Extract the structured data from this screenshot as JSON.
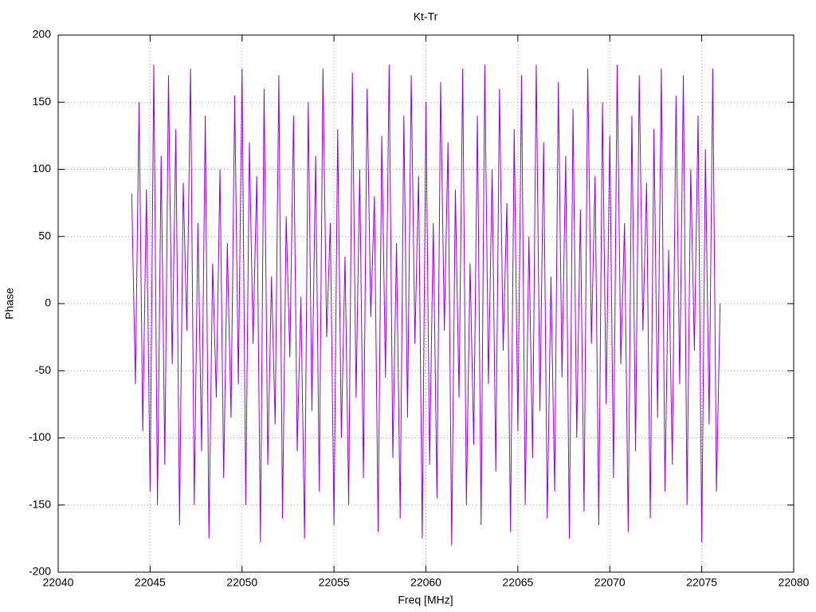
{
  "chart_data": {
    "type": "line",
    "title": "Kt-Tr",
    "xlabel": "Freq [MHz]",
    "ylabel": "Phase",
    "x": [
      22044,
      22044.2,
      22044.4,
      22044.6,
      22044.8,
      22045,
      22045.2,
      22045.4,
      22045.6,
      22045.8,
      22046,
      22046.2,
      22046.4,
      22046.6,
      22046.8,
      22047,
      22047.2,
      22047.4,
      22047.6,
      22047.8,
      22048,
      22048.2,
      22048.4,
      22048.6,
      22048.8,
      22049,
      22049.2,
      22049.4,
      22049.6,
      22049.8,
      22050,
      22050.2,
      22050.4,
      22050.6,
      22050.8,
      22051,
      22051.2,
      22051.4,
      22051.6,
      22051.8,
      22052,
      22052.2,
      22052.4,
      22052.6,
      22052.8,
      22053,
      22053.2,
      22053.4,
      22053.6,
      22053.8,
      22054,
      22054.2,
      22054.4,
      22054.6,
      22054.8,
      22055,
      22055.2,
      22055.4,
      22055.6,
      22055.8,
      22056,
      22056.2,
      22056.4,
      22056.6,
      22056.8,
      22057,
      22057.2,
      22057.4,
      22057.6,
      22057.8,
      22058,
      22058.2,
      22058.4,
      22058.6,
      22058.8,
      22059,
      22059.2,
      22059.4,
      22059.6,
      22059.8,
      22060,
      22060.2,
      22060.4,
      22060.6,
      22060.8,
      22061,
      22061.2,
      22061.4,
      22061.6,
      22061.8,
      22062,
      22062.2,
      22062.4,
      22062.6,
      22062.8,
      22063,
      22063.2,
      22063.4,
      22063.6,
      22063.8,
      22064,
      22064.2,
      22064.4,
      22064.6,
      22064.8,
      22065,
      22065.2,
      22065.4,
      22065.6,
      22065.8,
      22066,
      22066.2,
      22066.4,
      22066.6,
      22066.8,
      22067,
      22067.2,
      22067.4,
      22067.6,
      22067.8,
      22068,
      22068.2,
      22068.4,
      22068.6,
      22068.8,
      22069,
      22069.2,
      22069.4,
      22069.6,
      22069.8,
      22070,
      22070.2,
      22070.4,
      22070.6,
      22070.8,
      22071,
      22071.2,
      22071.4,
      22071.6,
      22071.8,
      22072,
      22072.2,
      22072.4,
      22072.6,
      22072.8,
      22073,
      22073.2,
      22073.4,
      22073.6,
      22073.8,
      22074,
      22074.2,
      22074.4,
      22074.6,
      22074.8,
      22075,
      22075.2,
      22075.4,
      22075.6,
      22075.8,
      22076
    ],
    "series": [
      {
        "name": "Kt-Tr",
        "color": "#9400d3",
        "values": [
          82,
          -60,
          150,
          -95,
          85,
          -140,
          178,
          -150,
          110,
          -120,
          170,
          -45,
          130,
          -165,
          90,
          -20,
          175,
          -150,
          60,
          -110,
          140,
          -175,
          30,
          -70,
          100,
          -130,
          45,
          -85,
          155,
          -60,
          175,
          -150,
          120,
          -30,
          95,
          -178,
          160,
          -120,
          20,
          -90,
          170,
          -160,
          65,
          -40,
          140,
          -110,
          5,
          -175,
          150,
          -80,
          110,
          -140,
          175,
          -25,
          60,
          -165,
          130,
          -100,
          35,
          -150,
          172,
          -70,
          100,
          -130,
          160,
          -10,
          80,
          -170,
          125,
          -55,
          178,
          -115,
          45,
          -160,
          140,
          -85,
          170,
          -30,
          95,
          -175,
          150,
          -120,
          60,
          -145,
          165,
          -20,
          120,
          -180,
          85,
          -70,
          175,
          -150,
          30,
          -105,
          140,
          -165,
          178,
          -60,
          100,
          -125,
          160,
          -35,
          75,
          -170,
          130,
          -95,
          170,
          -150,
          50,
          -115,
          178,
          -80,
          120,
          -160,
          20,
          -140,
          165,
          -55,
          110,
          -175,
          145,
          -100,
          70,
          -155,
          175,
          -30,
          95,
          -165,
          150,
          -75,
          125,
          -130,
          178,
          -45,
          60,
          -170,
          140,
          -110,
          170,
          -20,
          90,
          -160,
          130,
          -85,
          175,
          -140,
          40,
          -120,
          155,
          -60,
          170,
          -150,
          100,
          -35,
          140,
          -178,
          115,
          -90,
          175,
          -140,
          0
        ]
      }
    ],
    "xlim": [
      22040,
      22080
    ],
    "xticks": [
      22040,
      22045,
      22050,
      22055,
      22060,
      22065,
      22070,
      22075,
      22080
    ],
    "ylim": [
      -200,
      200
    ],
    "yticks": [
      -200,
      -150,
      -100,
      -50,
      0,
      50,
      100,
      150,
      200
    ],
    "grid": true
  }
}
